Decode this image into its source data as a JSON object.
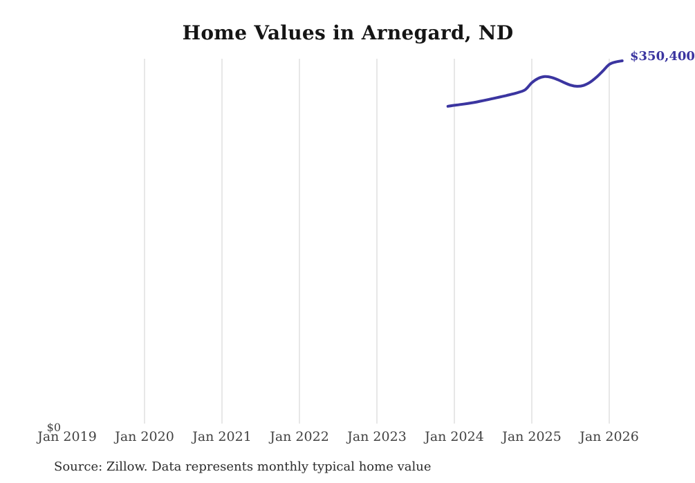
{
  "chart_data": {
    "type": "line",
    "title": "Home Values in Arnegard, ND",
    "source_note": "Source: Zillow. Data represents monthly typical home value",
    "y_zero_label": "$0",
    "end_label": "$350,400",
    "line_color": "#3b35a0",
    "gridline_color": "#cfcfcf",
    "x_tick_labels": [
      "Jan 2019",
      "Jan 2020",
      "Jan 2021",
      "Jan 2022",
      "Jan 2023",
      "Jan 2024",
      "Jan 2025",
      "Jan 2026"
    ],
    "gridlines_on_ticks": [
      "Jan 2020",
      "Jan 2021",
      "Jan 2022",
      "Jan 2023",
      "Jan 2024",
      "Jan 2025",
      "Jan 2026"
    ],
    "ylim": [
      0,
      352000
    ],
    "legend": "none",
    "series": [
      {
        "name": "Monthly typical home value",
        "x": [
          "2023-12",
          "2024-01",
          "2024-02",
          "2024-03",
          "2024-04",
          "2024-05",
          "2024-06",
          "2024-07",
          "2024-08",
          "2024-09",
          "2024-10",
          "2024-11",
          "2024-12",
          "2025-01",
          "2025-02",
          "2025-03",
          "2025-04",
          "2025-05",
          "2025-06",
          "2025-07",
          "2025-08",
          "2025-09",
          "2025-10",
          "2025-11",
          "2025-12",
          "2026-01",
          "2026-02",
          "2026-03"
        ],
        "values": [
          306900,
          307800,
          308600,
          309500,
          310500,
          311700,
          313000,
          314300,
          315700,
          317100,
          318600,
          320300,
          322800,
          329400,
          333600,
          335300,
          334600,
          332400,
          329600,
          327100,
          326000,
          326800,
          329800,
          334600,
          340600,
          346900,
          349300,
          350400
        ]
      }
    ]
  }
}
